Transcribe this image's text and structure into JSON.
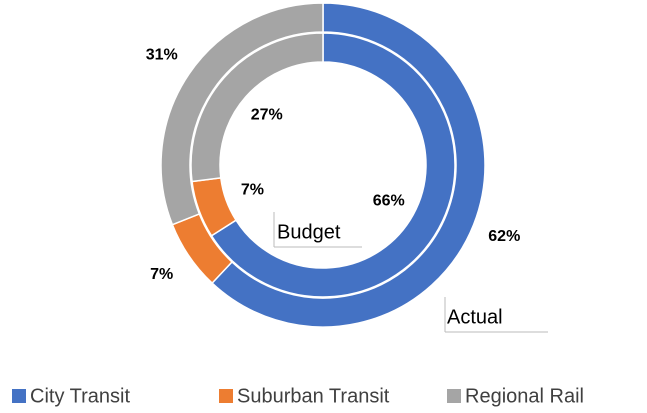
{
  "chart_data": {
    "type": "donut",
    "categories": [
      "City Transit",
      "Suburban Transit",
      "Regional Rail"
    ],
    "colors": [
      "#4472c4",
      "#ed7d31",
      "#a5a5a5"
    ],
    "series": [
      {
        "name": "Actual",
        "values": [
          62,
          7,
          31
        ],
        "value_labels": [
          "62%",
          "7%",
          "31%"
        ]
      },
      {
        "name": "Budget",
        "values": [
          66,
          7,
          27
        ],
        "value_labels": [
          "66%",
          "7%",
          "27%"
        ]
      }
    ],
    "legend": "bottom"
  }
}
